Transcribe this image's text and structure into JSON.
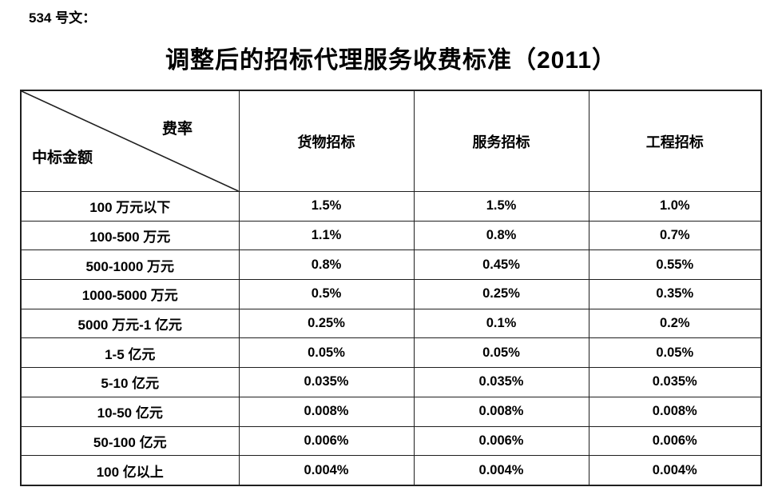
{
  "doc_label": "534 号文：",
  "title": "调整后的招标代理服务收费标准（2011）",
  "table": {
    "corner": {
      "top_right": "费率",
      "bottom_left": "中标金额"
    },
    "columns": [
      "货物招标",
      "服务招标",
      "工程招标"
    ],
    "rows": [
      {
        "label": "100 万元以下",
        "values": [
          "1.5%",
          "1.5%",
          "1.0%"
        ]
      },
      {
        "label": "100-500 万元",
        "values": [
          "1.1%",
          "0.8%",
          "0.7%"
        ]
      },
      {
        "label": "500-1000 万元",
        "values": [
          "0.8%",
          "0.45%",
          "0.55%"
        ]
      },
      {
        "label": "1000-5000 万元",
        "values": [
          "0.5%",
          "0.25%",
          "0.35%"
        ]
      },
      {
        "label": "5000 万元-1 亿元",
        "values": [
          "0.25%",
          "0.1%",
          "0.2%"
        ]
      },
      {
        "label": "1-5 亿元",
        "values": [
          "0.05%",
          "0.05%",
          "0.05%"
        ]
      },
      {
        "label": "5-10 亿元",
        "values": [
          "0.035%",
          "0.035%",
          "0.035%"
        ]
      },
      {
        "label": "10-50 亿元",
        "values": [
          "0.008%",
          "0.008%",
          "0.008%"
        ]
      },
      {
        "label": "50-100 亿元",
        "values": [
          "0.006%",
          "0.006%",
          "0.006%"
        ]
      },
      {
        "label": "100 亿以上",
        "values": [
          "0.004%",
          "0.004%",
          "0.004%"
        ]
      }
    ]
  },
  "colors": {
    "border": "#1f1f1f",
    "text": "#000000",
    "background": "#ffffff"
  }
}
